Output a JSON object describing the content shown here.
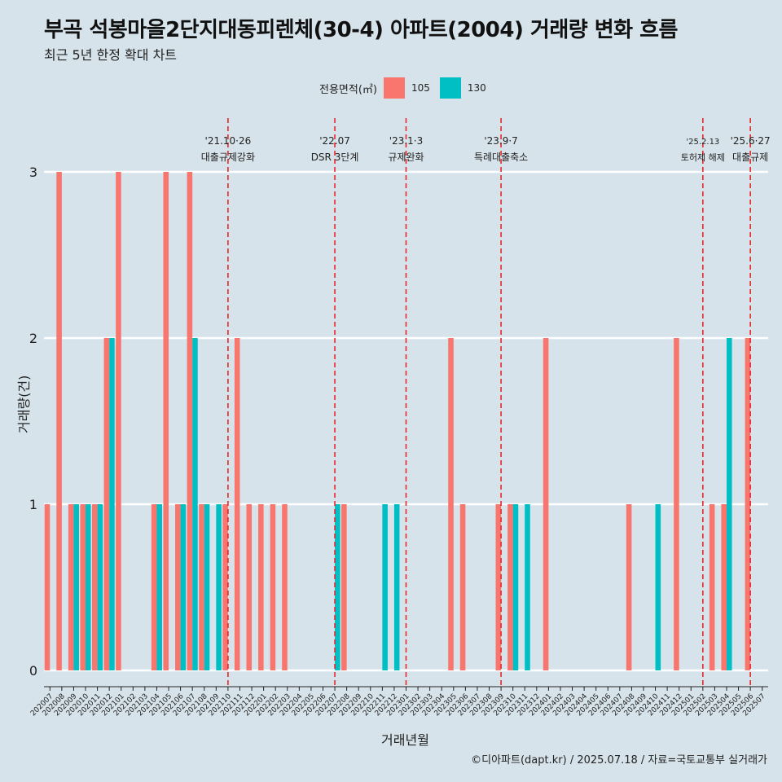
{
  "title": "부곡 석봉마을2단지대동피렌체(30-4) 아파트(2004) 거래량 변화 흐름",
  "subtitle": "최근 5년 한정 확대 차트",
  "caption": "©디아파트(dapt.kr) / 2025.07.18 / 자료=국토교통부 실거래가",
  "legend": {
    "title": "전용면적(㎡)",
    "items": [
      {
        "label": "105",
        "color": "#f8766d"
      },
      {
        "label": "130",
        "color": "#00bfc4"
      }
    ]
  },
  "chart_data": {
    "type": "bar",
    "xlabel": "거래년월",
    "ylabel": "거래량(건)",
    "ylim": [
      0,
      3
    ],
    "yticks": [
      0,
      1,
      2,
      3
    ],
    "grid": true,
    "categories": [
      "202007",
      "202008",
      "202009",
      "202010",
      "202011",
      "202012",
      "202101",
      "202102",
      "202103",
      "202104",
      "202105",
      "202106",
      "202107",
      "202108",
      "202109",
      "202110",
      "202111",
      "202112",
      "202201",
      "202202",
      "202203",
      "202204",
      "202205",
      "202206",
      "202207",
      "202208",
      "202209",
      "202210",
      "202211",
      "202212",
      "202301",
      "202302",
      "202303",
      "202304",
      "202305",
      "202306",
      "202307",
      "202308",
      "202309",
      "202310",
      "202311",
      "202312",
      "202401",
      "202402",
      "202403",
      "202404",
      "202405",
      "202406",
      "202407",
      "202408",
      "202409",
      "202410",
      "202411",
      "202412",
      "202501",
      "202502",
      "202503",
      "202504",
      "202505",
      "202506",
      "202507"
    ],
    "series": [
      {
        "name": "105",
        "color": "#f8766d",
        "values": [
          1,
          3,
          1,
          1,
          1,
          2,
          3,
          0,
          0,
          1,
          3,
          1,
          3,
          1,
          0,
          1,
          2,
          1,
          1,
          1,
          1,
          0,
          0,
          0,
          0,
          1,
          0,
          0,
          0,
          0,
          0,
          0,
          0,
          0,
          2,
          1,
          0,
          0,
          1,
          1,
          0,
          0,
          2,
          0,
          0,
          0,
          0,
          0,
          0,
          1,
          0,
          0,
          0,
          2,
          0,
          0,
          1,
          1,
          0,
          2,
          0
        ]
      },
      {
        "name": "130",
        "color": "#00bfc4",
        "values": [
          0,
          0,
          1,
          1,
          1,
          2,
          0,
          0,
          0,
          1,
          0,
          1,
          2,
          1,
          1,
          0,
          0,
          0,
          0,
          0,
          0,
          0,
          0,
          0,
          1,
          0,
          0,
          0,
          1,
          1,
          0,
          0,
          0,
          0,
          0,
          0,
          0,
          0,
          0,
          1,
          1,
          0,
          0,
          0,
          0,
          0,
          0,
          0,
          0,
          0,
          0,
          1,
          0,
          0,
          0,
          0,
          0,
          2,
          0,
          0,
          0
        ]
      }
    ],
    "events": [
      {
        "x": "202110",
        "date": "'21.10·26",
        "label": "대출규제강화"
      },
      {
        "x": "202207",
        "date": "'22.07",
        "label": "DSR 3단계"
      },
      {
        "x": "202301",
        "date": "'23.1·3",
        "label": "규제완화"
      },
      {
        "x": "202309",
        "date": "'23.9·7",
        "label": "특례대출축소"
      },
      {
        "x": "202502",
        "date": "'25.2.13",
        "label": "토허제 해제"
      },
      {
        "x": "202506",
        "date": "'25.6·27",
        "label": "대출규제"
      }
    ]
  }
}
